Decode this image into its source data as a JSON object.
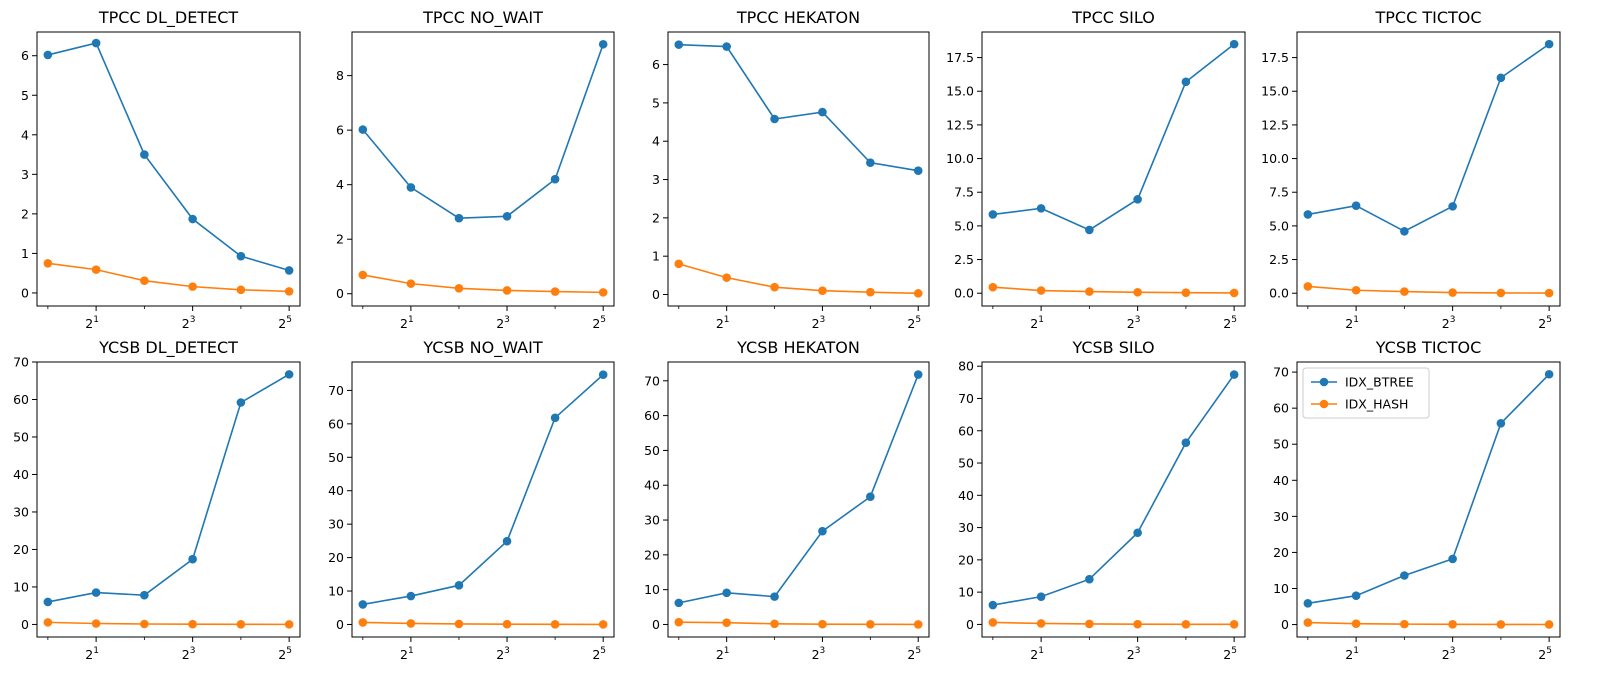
{
  "legend": {
    "location": "upper left of last subplot",
    "entries": [
      {
        "name": "IDX_BTREE",
        "color": "#1f77b4"
      },
      {
        "name": "IDX_HASH",
        "color": "#ff7f0e"
      }
    ]
  },
  "chart_data": [
    {
      "type": "line",
      "title": "TPCC DL_DETECT",
      "xscale": "log2",
      "x": [
        1,
        2,
        4,
        8,
        16,
        32
      ],
      "xticks": [
        {
          "value": 2,
          "base": "2",
          "exp": "1"
        },
        {
          "value": 8,
          "base": "2",
          "exp": "3"
        },
        {
          "value": 32,
          "base": "2",
          "exp": "5"
        }
      ],
      "ylim": [
        -0.33,
        6.6
      ],
      "yticks": [
        0,
        1,
        2,
        3,
        4,
        5,
        6
      ],
      "ytick_labels": [
        "0",
        "1",
        "2",
        "3",
        "4",
        "5",
        "6"
      ],
      "series": [
        {
          "name": "IDX_BTREE",
          "color": "#1f77b4",
          "values": [
            6.02,
            6.32,
            3.5,
            1.87,
            0.93,
            0.57
          ]
        },
        {
          "name": "IDX_HASH",
          "color": "#ff7f0e",
          "values": [
            0.75,
            0.59,
            0.31,
            0.16,
            0.08,
            0.04
          ]
        }
      ]
    },
    {
      "type": "line",
      "title": "TPCC NO_WAIT",
      "xscale": "log2",
      "x": [
        1,
        2,
        4,
        8,
        16,
        32
      ],
      "xticks": [
        {
          "value": 2,
          "base": "2",
          "exp": "1"
        },
        {
          "value": 8,
          "base": "2",
          "exp": "3"
        },
        {
          "value": 32,
          "base": "2",
          "exp": "5"
        }
      ],
      "ylim": [
        -0.45,
        9.6
      ],
      "yticks": [
        0,
        2,
        4,
        6,
        8
      ],
      "ytick_labels": [
        "0",
        "2",
        "4",
        "6",
        "8"
      ],
      "series": [
        {
          "name": "IDX_BTREE",
          "color": "#1f77b4",
          "values": [
            6.02,
            3.9,
            2.77,
            2.84,
            4.2,
            9.15
          ]
        },
        {
          "name": "IDX_HASH",
          "color": "#ff7f0e",
          "values": [
            0.69,
            0.37,
            0.2,
            0.12,
            0.08,
            0.05
          ]
        }
      ]
    },
    {
      "type": "line",
      "title": "TPCC HEKATON",
      "xscale": "log2",
      "x": [
        1,
        2,
        4,
        8,
        16,
        32
      ],
      "xticks": [
        {
          "value": 2,
          "base": "2",
          "exp": "1"
        },
        {
          "value": 8,
          "base": "2",
          "exp": "3"
        },
        {
          "value": 32,
          "base": "2",
          "exp": "5"
        }
      ],
      "ylim": [
        -0.3,
        6.85
      ],
      "yticks": [
        0,
        1,
        2,
        3,
        4,
        5,
        6
      ],
      "ytick_labels": [
        "0",
        "1",
        "2",
        "3",
        "4",
        "5",
        "6"
      ],
      "series": [
        {
          "name": "IDX_BTREE",
          "color": "#1f77b4",
          "values": [
            6.52,
            6.47,
            4.58,
            4.76,
            3.44,
            3.23
          ]
        },
        {
          "name": "IDX_HASH",
          "color": "#ff7f0e",
          "values": [
            0.8,
            0.44,
            0.19,
            0.1,
            0.06,
            0.03
          ]
        }
      ]
    },
    {
      "type": "line",
      "title": "TPCC SILO",
      "xscale": "log2",
      "x": [
        1,
        2,
        4,
        8,
        16,
        32
      ],
      "xticks": [
        {
          "value": 2,
          "base": "2",
          "exp": "1"
        },
        {
          "value": 8,
          "base": "2",
          "exp": "3"
        },
        {
          "value": 32,
          "base": "2",
          "exp": "5"
        }
      ],
      "ylim": [
        -0.95,
        19.4
      ],
      "yticks": [
        0,
        2.5,
        5,
        7.5,
        10,
        12.5,
        15,
        17.5
      ],
      "ytick_labels": [
        "0.0",
        "2.5",
        "5.0",
        "7.5",
        "10.0",
        "12.5",
        "15.0",
        "17.5"
      ],
      "series": [
        {
          "name": "IDX_BTREE",
          "color": "#1f77b4",
          "values": [
            5.85,
            6.3,
            4.7,
            6.97,
            15.7,
            18.5
          ]
        },
        {
          "name": "IDX_HASH",
          "color": "#ff7f0e",
          "values": [
            0.45,
            0.2,
            0.12,
            0.07,
            0.04,
            0.02
          ]
        }
      ]
    },
    {
      "type": "line",
      "title": "TPCC TICTOC",
      "xscale": "log2",
      "x": [
        1,
        2,
        4,
        8,
        16,
        32
      ],
      "xticks": [
        {
          "value": 2,
          "base": "2",
          "exp": "1"
        },
        {
          "value": 8,
          "base": "2",
          "exp": "3"
        },
        {
          "value": 32,
          "base": "2",
          "exp": "5"
        }
      ],
      "ylim": [
        -0.95,
        19.4
      ],
      "yticks": [
        0,
        2.5,
        5,
        7.5,
        10,
        12.5,
        15,
        17.5
      ],
      "ytick_labels": [
        "0.0",
        "2.5",
        "5.0",
        "7.5",
        "10.0",
        "12.5",
        "15.0",
        "17.5"
      ],
      "series": [
        {
          "name": "IDX_BTREE",
          "color": "#1f77b4",
          "values": [
            5.85,
            6.5,
            4.6,
            6.45,
            16.0,
            18.5
          ]
        },
        {
          "name": "IDX_HASH",
          "color": "#ff7f0e",
          "values": [
            0.5,
            0.22,
            0.12,
            0.05,
            0.02,
            0.01
          ]
        }
      ]
    },
    {
      "type": "line",
      "title": "YCSB DL_DETECT",
      "xscale": "log2",
      "x": [
        1,
        2,
        4,
        8,
        16,
        32
      ],
      "xticks": [
        {
          "value": 2,
          "base": "2",
          "exp": "1"
        },
        {
          "value": 8,
          "base": "2",
          "exp": "3"
        },
        {
          "value": 32,
          "base": "2",
          "exp": "5"
        }
      ],
      "ylim": [
        -3.35,
        70
      ],
      "yticks": [
        0,
        10,
        20,
        30,
        40,
        50,
        60,
        70
      ],
      "ytick_labels": [
        "0",
        "10",
        "20",
        "30",
        "40",
        "50",
        "60",
        "70"
      ],
      "series": [
        {
          "name": "IDX_BTREE",
          "color": "#1f77b4",
          "values": [
            6.0,
            8.5,
            7.8,
            17.4,
            59.2,
            66.7
          ]
        },
        {
          "name": "IDX_HASH",
          "color": "#ff7f0e",
          "values": [
            0.55,
            0.25,
            0.12,
            0.06,
            0.03,
            0.02
          ]
        }
      ]
    },
    {
      "type": "line",
      "title": "YCSB NO_WAIT",
      "xscale": "log2",
      "x": [
        1,
        2,
        4,
        8,
        16,
        32
      ],
      "xticks": [
        {
          "value": 2,
          "base": "2",
          "exp": "1"
        },
        {
          "value": 8,
          "base": "2",
          "exp": "3"
        },
        {
          "value": 32,
          "base": "2",
          "exp": "5"
        }
      ],
      "ylim": [
        -3.75,
        78.5
      ],
      "yticks": [
        0,
        10,
        20,
        30,
        40,
        50,
        60,
        70
      ],
      "ytick_labels": [
        "0",
        "10",
        "20",
        "30",
        "40",
        "50",
        "60",
        "70"
      ],
      "series": [
        {
          "name": "IDX_BTREE",
          "color": "#1f77b4",
          "values": [
            6.0,
            8.5,
            11.7,
            24.9,
            61.8,
            74.7
          ]
        },
        {
          "name": "IDX_HASH",
          "color": "#ff7f0e",
          "values": [
            0.6,
            0.3,
            0.15,
            0.08,
            0.04,
            0.02
          ]
        }
      ]
    },
    {
      "type": "line",
      "title": "YCSB HEKATON",
      "xscale": "log2",
      "x": [
        1,
        2,
        4,
        8,
        16,
        32
      ],
      "xticks": [
        {
          "value": 2,
          "base": "2",
          "exp": "1"
        },
        {
          "value": 8,
          "base": "2",
          "exp": "3"
        },
        {
          "value": 32,
          "base": "2",
          "exp": "5"
        }
      ],
      "ylim": [
        -3.6,
        75.4
      ],
      "yticks": [
        0,
        10,
        20,
        30,
        40,
        50,
        60,
        70
      ],
      "ytick_labels": [
        "0",
        "10",
        "20",
        "30",
        "40",
        "50",
        "60",
        "70"
      ],
      "series": [
        {
          "name": "IDX_BTREE",
          "color": "#1f77b4",
          "values": [
            6.2,
            9.1,
            8.0,
            26.8,
            36.7,
            71.8
          ]
        },
        {
          "name": "IDX_HASH",
          "color": "#ff7f0e",
          "values": [
            0.65,
            0.5,
            0.2,
            0.08,
            0.04,
            0.02
          ]
        }
      ]
    },
    {
      "type": "line",
      "title": "YCSB SILO",
      "xscale": "log2",
      "x": [
        1,
        2,
        4,
        8,
        16,
        32
      ],
      "xticks": [
        {
          "value": 2,
          "base": "2",
          "exp": "1"
        },
        {
          "value": 8,
          "base": "2",
          "exp": "3"
        },
        {
          "value": 32,
          "base": "2",
          "exp": "5"
        }
      ],
      "ylim": [
        -3.9,
        81.3
      ],
      "yticks": [
        0,
        10,
        20,
        30,
        40,
        50,
        60,
        70,
        80
      ],
      "ytick_labels": [
        "0",
        "10",
        "20",
        "30",
        "40",
        "50",
        "60",
        "70",
        "80"
      ],
      "series": [
        {
          "name": "IDX_BTREE",
          "color": "#1f77b4",
          "values": [
            6.0,
            8.6,
            14.0,
            28.4,
            56.3,
            77.4
          ]
        },
        {
          "name": "IDX_HASH",
          "color": "#ff7f0e",
          "values": [
            0.6,
            0.3,
            0.15,
            0.07,
            0.03,
            0.02
          ]
        }
      ]
    },
    {
      "type": "line",
      "title": "YCSB TICTOC",
      "xscale": "log2",
      "x": [
        1,
        2,
        4,
        8,
        16,
        32
      ],
      "xticks": [
        {
          "value": 2,
          "base": "2",
          "exp": "1"
        },
        {
          "value": 8,
          "base": "2",
          "exp": "3"
        },
        {
          "value": 32,
          "base": "2",
          "exp": "5"
        }
      ],
      "ylim": [
        -3.45,
        72.8
      ],
      "yticks": [
        0,
        10,
        20,
        30,
        40,
        50,
        60,
        70
      ],
      "ytick_labels": [
        "0",
        "10",
        "20",
        "30",
        "40",
        "50",
        "60",
        "70"
      ],
      "series": [
        {
          "name": "IDX_BTREE",
          "color": "#1f77b4",
          "values": [
            5.9,
            8.0,
            13.6,
            18.2,
            55.8,
            69.4
          ]
        },
        {
          "name": "IDX_HASH",
          "color": "#ff7f0e",
          "values": [
            0.55,
            0.25,
            0.12,
            0.06,
            0.03,
            0.02
          ]
        }
      ],
      "legend": "upper left"
    }
  ]
}
